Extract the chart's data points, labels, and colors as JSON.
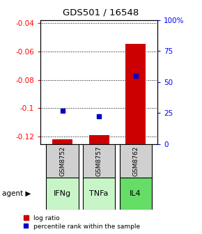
{
  "title": "GDS501 / 16548",
  "samples": [
    "GSM8752",
    "GSM8757",
    "GSM8762"
  ],
  "agents": [
    "IFNg",
    "TNFa",
    "IL4"
  ],
  "agent_colors": [
    "#c8f5c8",
    "#c8f5c8",
    "#66dd66"
  ],
  "log_ratios": [
    -0.122,
    -0.119,
    -0.055
  ],
  "percentiles": [
    27,
    22,
    55
  ],
  "ylim_left": [
    -0.125,
    -0.038
  ],
  "ylim_right": [
    0,
    100
  ],
  "yticks_left": [
    -0.04,
    -0.06,
    -0.08,
    -0.1,
    -0.12
  ],
  "yticks_right": [
    0,
    25,
    50,
    75,
    100
  ],
  "ytick_labels_right": [
    "0",
    "25",
    "50",
    "75",
    "100%"
  ],
  "bar_color": "#CC0000",
  "point_color": "#0000CC",
  "sample_box_color": "#d0d0d0",
  "bar_bottom": -0.125
}
